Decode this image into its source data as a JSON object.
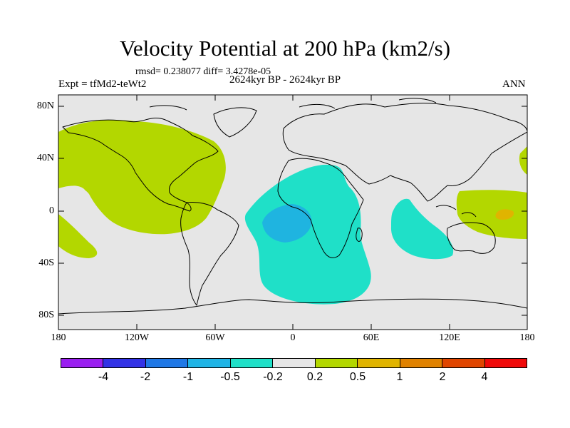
{
  "title": "Velocity Potential at 200 hPa (km2/s)",
  "stats": "rmsd= 0.238077 diff= 3.4278e-05",
  "experiment": "Expt = tfMd2-teWt2",
  "period": "2624kyr BP - 2624kyr BP",
  "season": "ANN",
  "y_labels": [
    "80N",
    "40N",
    "0",
    "40S",
    "80S"
  ],
  "x_labels": [
    "180",
    "120W",
    "60W",
    "0",
    "60E",
    "120E",
    "180"
  ],
  "colors": {
    "ocean": "#e6e6e6",
    "positive_weak": "#b3d700",
    "positive_mid": "#e0b400",
    "negative_weak": "#1fe0c8",
    "negative_mid": "#1fb4e0"
  },
  "colorbar": {
    "colors": [
      "#9a1ff0",
      "#3232e6",
      "#1f78e6",
      "#1fb4e6",
      "#1fe0c8",
      "#e6e6e6",
      "#b3d700",
      "#e0b400",
      "#e08200",
      "#e04600",
      "#f00a0a"
    ],
    "labels": [
      "-4",
      "-2",
      "-1",
      "-0.5",
      "-0.2",
      "0.2",
      "0.5",
      "1",
      "2",
      "4"
    ]
  }
}
